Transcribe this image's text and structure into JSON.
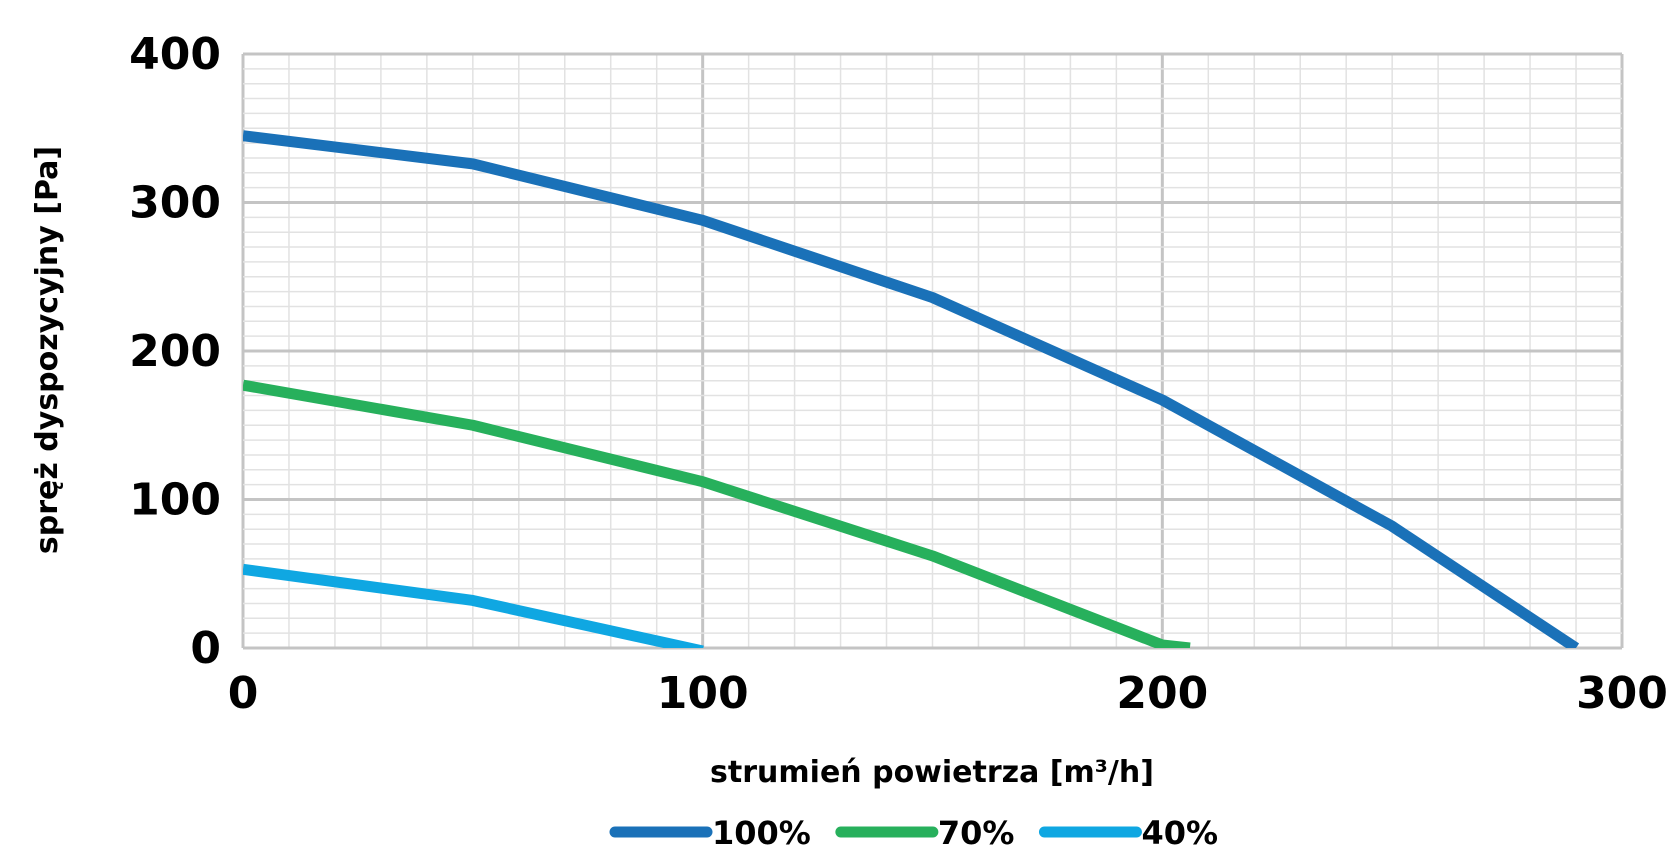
{
  "chart_data": {
    "type": "line",
    "xlabel": "strumień powietrza [m³/h]",
    "ylabel": "spręż dyspozycyjny [Pa]",
    "xlim": [
      0,
      300
    ],
    "ylim": [
      0,
      400
    ],
    "x_ticks": [
      "0",
      "100",
      "200",
      "300"
    ],
    "y_ticks": [
      "0",
      "100",
      "200",
      "300",
      "400"
    ],
    "grid": true,
    "legend_position": "bottom",
    "series": [
      {
        "name": "100%",
        "color": "#1a71b8",
        "points": [
          [
            0,
            345
          ],
          [
            50,
            326
          ],
          [
            100,
            288
          ],
          [
            150,
            236
          ],
          [
            200,
            167
          ],
          [
            250,
            82
          ],
          [
            290,
            0
          ]
        ]
      },
      {
        "name": "70%",
        "color": "#27b05c",
        "points": [
          [
            0,
            177
          ],
          [
            50,
            150
          ],
          [
            100,
            112
          ],
          [
            150,
            62
          ],
          [
            200,
            2
          ],
          [
            206,
            0
          ]
        ]
      },
      {
        "name": "40%",
        "color": "#0fa7e2",
        "points": [
          [
            0,
            53
          ],
          [
            50,
            32
          ],
          [
            100,
            -2
          ]
        ]
      }
    ]
  }
}
